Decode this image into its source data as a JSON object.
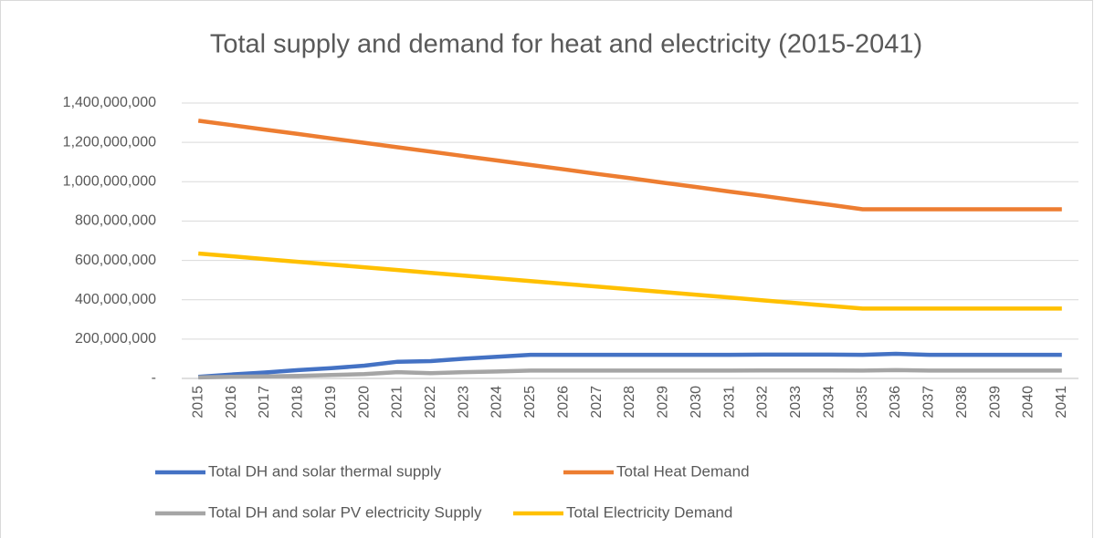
{
  "chart_data": {
    "type": "line",
    "title": "Total supply and demand for heat and electricity (2015-2041)",
    "categories": [
      "2015",
      "2016",
      "2017",
      "2018",
      "2019",
      "2020",
      "2021",
      "2022",
      "2023",
      "2024",
      "2025",
      "2026",
      "2027",
      "2028",
      "2029",
      "2030",
      "2031",
      "2032",
      "2033",
      "2034",
      "2035",
      "2036",
      "2037",
      "2038",
      "2039",
      "2040",
      "2041"
    ],
    "series": [
      {
        "name": "Total DH and solar thermal supply",
        "color": "#4472c4",
        "values": [
          8000000,
          20000000,
          30000000,
          42000000,
          52000000,
          65000000,
          85000000,
          88000000,
          100000000,
          110000000,
          120000000,
          120000000,
          120000000,
          120000000,
          120000000,
          120000000,
          120000000,
          121000000,
          121000000,
          121000000,
          120000000,
          125000000,
          120000000,
          120000000,
          120000000,
          120000000,
          120000000
        ]
      },
      {
        "name": "Total Heat Demand",
        "color": "#ed7d31",
        "values": [
          1310000000,
          1288000000,
          1265000000,
          1243000000,
          1220000000,
          1198000000,
          1175000000,
          1153000000,
          1130000000,
          1108000000,
          1085000000,
          1063000000,
          1040000000,
          1018000000,
          995000000,
          973000000,
          950000000,
          928000000,
          905000000,
          883000000,
          860000000,
          860000000,
          860000000,
          860000000,
          860000000,
          860000000,
          860000000
        ]
      },
      {
        "name": "Total DH and solar PV electricity Supply",
        "color": "#a5a5a5",
        "values": [
          5000000,
          8000000,
          10000000,
          13000000,
          17000000,
          22000000,
          32000000,
          27000000,
          32000000,
          35000000,
          40000000,
          40000000,
          40000000,
          40000000,
          40000000,
          40000000,
          40000000,
          41000000,
          41000000,
          41000000,
          40000000,
          42000000,
          40000000,
          40000000,
          40000000,
          40000000,
          40000000
        ]
      },
      {
        "name": "Total Electricity Demand",
        "color": "#ffc000",
        "values": [
          635000000,
          621000000,
          607000000,
          593000000,
          579000000,
          565000000,
          551000000,
          537000000,
          523000000,
          509000000,
          495000000,
          481000000,
          467000000,
          453000000,
          439000000,
          425000000,
          411000000,
          397000000,
          383000000,
          369000000,
          355000000,
          355000000,
          355000000,
          355000000,
          355000000,
          355000000,
          355000000
        ]
      }
    ],
    "ylim": [
      0,
      1400000000
    ],
    "yticks": [
      {
        "value": 0,
        "label": "-"
      },
      {
        "value": 200000000,
        "label": "200,000,000"
      },
      {
        "value": 400000000,
        "label": "400,000,000"
      },
      {
        "value": 600000000,
        "label": "600,000,000"
      },
      {
        "value": 800000000,
        "label": "800,000,000"
      },
      {
        "value": 1000000000,
        "label": "1,000,000,000"
      },
      {
        "value": 1200000000,
        "label": "1,200,000,000"
      },
      {
        "value": 1400000000,
        "label": "1,400,000,000"
      }
    ],
    "grid": true,
    "legend": "bottom"
  }
}
